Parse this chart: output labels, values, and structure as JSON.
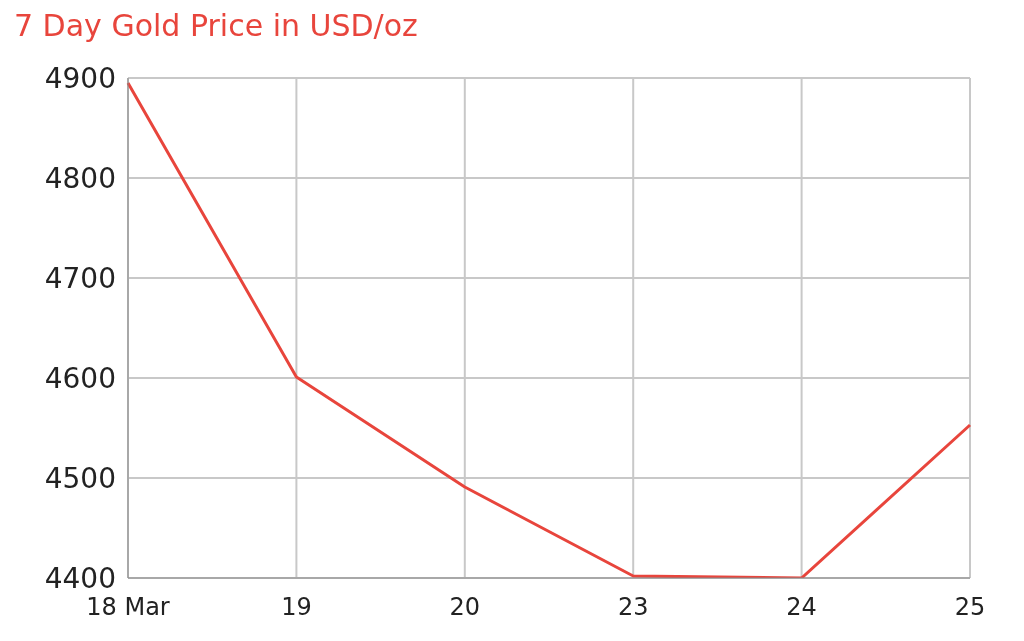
{
  "chart_data": {
    "type": "line",
    "title": "7 Day Gold Price in USD/oz",
    "categories": [
      "18 Mar",
      "19",
      "20",
      "23",
      "24",
      "25"
    ],
    "series": [
      {
        "color": "#e8453c",
        "values": [
          4895,
          4601,
          4491,
          4402,
          4400,
          4553
        ]
      }
    ],
    "ylim": [
      4400,
      4900
    ],
    "yticks": [
      4400,
      4500,
      4600,
      4700,
      4800,
      4900
    ],
    "grid": true,
    "legend": false,
    "marker": "none",
    "line_style": "solid"
  }
}
